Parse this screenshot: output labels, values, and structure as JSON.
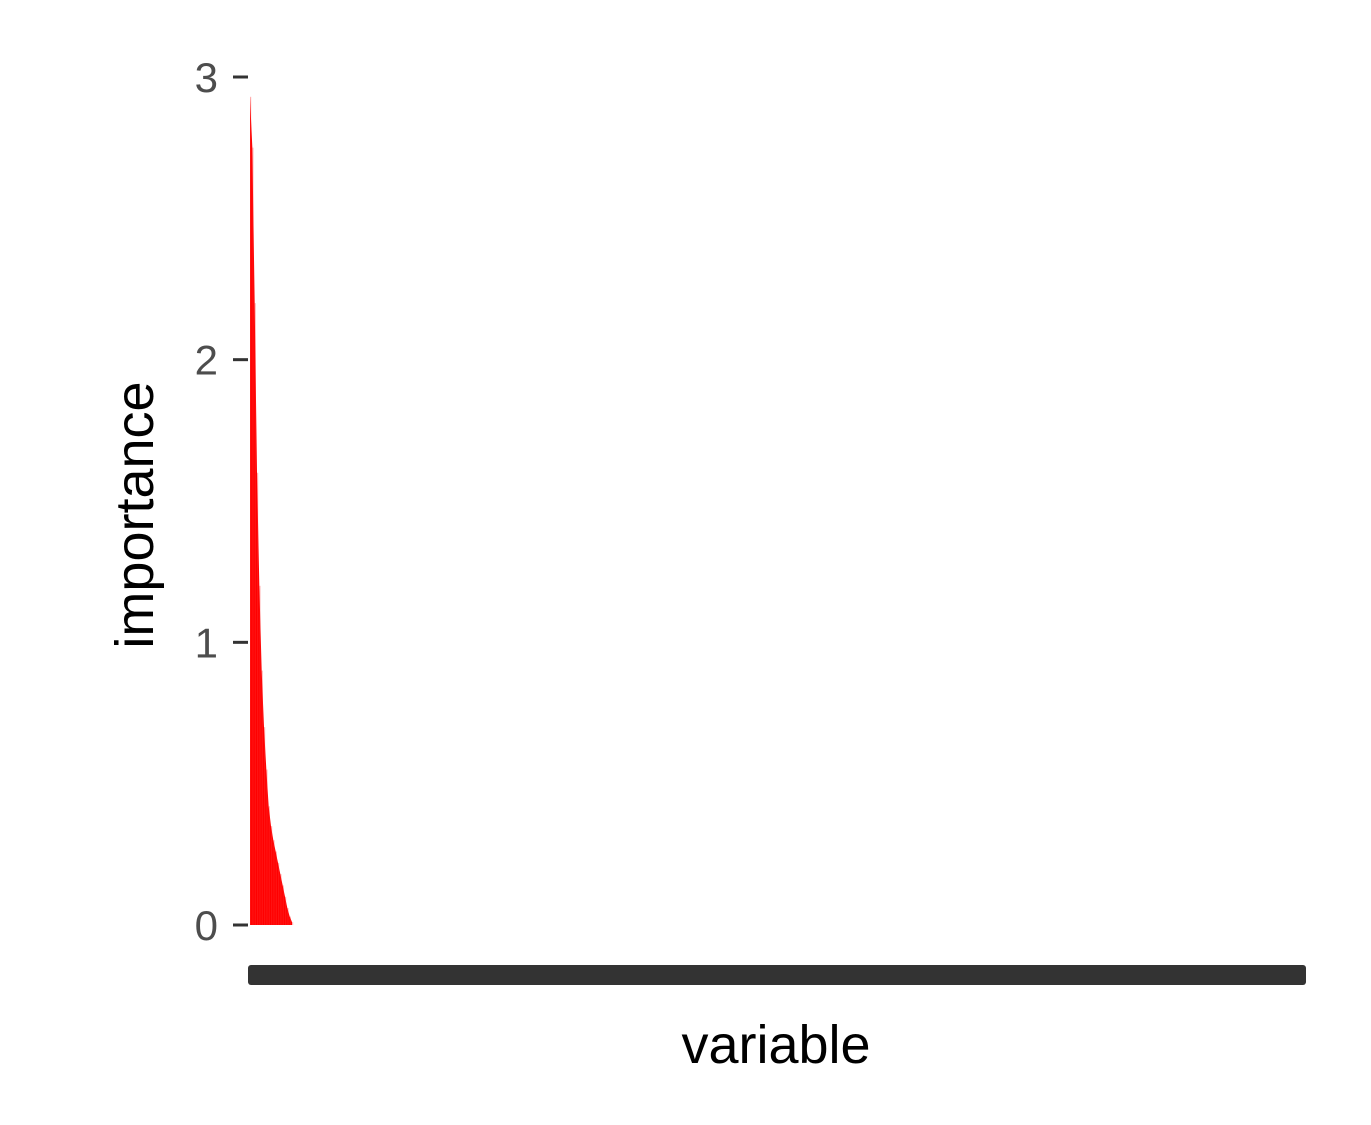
{
  "chart_data": {
    "type": "area",
    "xlabel": "variable",
    "ylabel": "importance",
    "ylim": [
      0,
      3
    ],
    "yticks": [
      0,
      1,
      2,
      3
    ],
    "x_tick_labels": "dense and overlapping (rendered as a solid dark band)",
    "grid": false,
    "legend": "none",
    "fill_color": "#ff0000",
    "x_axis_band_color": "#333333",
    "tick_label_color": "#4d4d4d",
    "series": [
      {
        "values": [
          2.93,
          2.75,
          2.2,
          1.6,
          1.2,
          0.9,
          0.7,
          0.55,
          0.42,
          0.35,
          0.3,
          0.26,
          0.22,
          0.18,
          0.14,
          0.1,
          0.06,
          0.03,
          0.01
        ],
        "count_total_variables": 500
      }
    ]
  }
}
